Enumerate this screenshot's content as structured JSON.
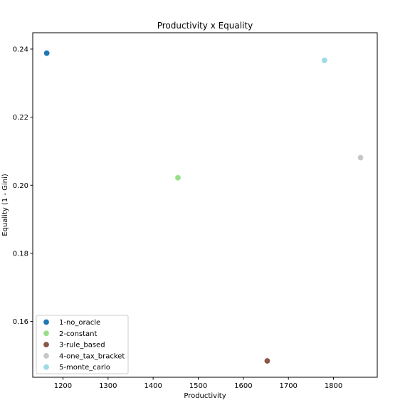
{
  "chart_data": {
    "type": "scatter",
    "title": "Productivity x Equality",
    "xlabel": "Productivity",
    "ylabel": "Equality (1 - Gini)",
    "xlim": [
      1133,
      1897
    ],
    "ylim": [
      0.1436,
      0.2448
    ],
    "xticks": [
      1200,
      1300,
      1400,
      1500,
      1600,
      1700,
      1800
    ],
    "yticks": [
      0.16,
      0.18,
      0.2,
      0.22,
      0.24
    ],
    "ytick_labels": [
      "0.16",
      "0.18",
      "0.20",
      "0.22",
      "0.24"
    ],
    "grid": false,
    "legend_position": "lower-left",
    "series": [
      {
        "name": "1-no_oracle",
        "color": "#1f77b4",
        "x": [
          1164
        ],
        "y": [
          0.2388
        ]
      },
      {
        "name": "2-constant",
        "color": "#98df8a",
        "x": [
          1455
        ],
        "y": [
          0.2022
        ]
      },
      {
        "name": "3-rule_based",
        "color": "#8c564b",
        "x": [
          1653
        ],
        "y": [
          0.1484
        ]
      },
      {
        "name": "4-one_tax_bracket",
        "color": "#c7c7c7",
        "x": [
          1860
        ],
        "y": [
          0.2081
        ]
      },
      {
        "name": "5-monte_carlo",
        "color": "#9edae5",
        "x": [
          1780
        ],
        "y": [
          0.2367
        ]
      }
    ]
  }
}
